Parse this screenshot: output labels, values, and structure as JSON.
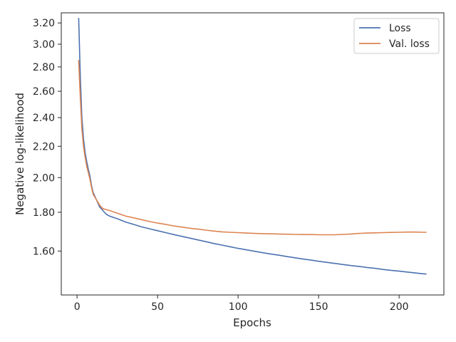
{
  "chart_data": {
    "type": "line",
    "title": "",
    "xlabel": "Epochs",
    "ylabel": "Negative log-likelihood",
    "yscale": "log",
    "xlim": [
      -9.8,
      227.8
    ],
    "ylim": [
      1.4,
      3.3
    ],
    "x_ticks": [
      0,
      50,
      100,
      150,
      200
    ],
    "x_tick_labels": [
      "0",
      "50",
      "100",
      "150",
      "200"
    ],
    "y_ticks": [
      1.6,
      1.8,
      2.0,
      2.2,
      2.4,
      2.6,
      2.8,
      3.0,
      3.2
    ],
    "y_tick_labels": [
      "1.60",
      "1.80",
      "2.00",
      "2.20",
      "2.40",
      "2.60",
      "2.80",
      "3.00",
      "3.20"
    ],
    "grid": false,
    "legend_position": "top-right",
    "series": [
      {
        "name": "Loss",
        "color": "#4c72b0",
        "points": [
          [
            1,
            3.25
          ],
          [
            2,
            2.72
          ],
          [
            3,
            2.4
          ],
          [
            4,
            2.25
          ],
          [
            5,
            2.16
          ],
          [
            6,
            2.1
          ],
          [
            7,
            2.05
          ],
          [
            8,
            2.01
          ],
          [
            9,
            1.95
          ],
          [
            10,
            1.91
          ],
          [
            12,
            1.87
          ],
          [
            14,
            1.83
          ],
          [
            16,
            1.81
          ],
          [
            18,
            1.79
          ],
          [
            20,
            1.78
          ],
          [
            25,
            1.765
          ],
          [
            30,
            1.748
          ],
          [
            35,
            1.735
          ],
          [
            40,
            1.722
          ],
          [
            45,
            1.712
          ],
          [
            50,
            1.702
          ],
          [
            55,
            1.692
          ],
          [
            60,
            1.682
          ],
          [
            65,
            1.673
          ],
          [
            70,
            1.664
          ],
          [
            75,
            1.655
          ],
          [
            80,
            1.646
          ],
          [
            85,
            1.637
          ],
          [
            90,
            1.629
          ],
          [
            95,
            1.621
          ],
          [
            100,
            1.613
          ],
          [
            105,
            1.606
          ],
          [
            110,
            1.599
          ],
          [
            115,
            1.592
          ],
          [
            120,
            1.586
          ],
          [
            125,
            1.58
          ],
          [
            130,
            1.574
          ],
          [
            135,
            1.568
          ],
          [
            140,
            1.562
          ],
          [
            145,
            1.557
          ],
          [
            150,
            1.551
          ],
          [
            155,
            1.546
          ],
          [
            160,
            1.541
          ],
          [
            165,
            1.536
          ],
          [
            170,
            1.531
          ],
          [
            175,
            1.527
          ],
          [
            180,
            1.522
          ],
          [
            185,
            1.518
          ],
          [
            190,
            1.513
          ],
          [
            195,
            1.509
          ],
          [
            200,
            1.505
          ],
          [
            205,
            1.501
          ],
          [
            210,
            1.497
          ],
          [
            215,
            1.493
          ],
          [
            217,
            1.492
          ]
        ]
      },
      {
        "name": "Val. loss",
        "color": "#dd8452",
        "points": [
          [
            1,
            2.86
          ],
          [
            2,
            2.55
          ],
          [
            3,
            2.32
          ],
          [
            4,
            2.2
          ],
          [
            5,
            2.13
          ],
          [
            6,
            2.07
          ],
          [
            7,
            2.03
          ],
          [
            8,
            1.99
          ],
          [
            9,
            1.94
          ],
          [
            10,
            1.9
          ],
          [
            12,
            1.87
          ],
          [
            14,
            1.84
          ],
          [
            16,
            1.82
          ],
          [
            18,
            1.815
          ],
          [
            20,
            1.81
          ],
          [
            25,
            1.795
          ],
          [
            30,
            1.78
          ],
          [
            35,
            1.77
          ],
          [
            40,
            1.76
          ],
          [
            45,
            1.75
          ],
          [
            50,
            1.742
          ],
          [
            55,
            1.735
          ],
          [
            60,
            1.727
          ],
          [
            65,
            1.721
          ],
          [
            70,
            1.715
          ],
          [
            75,
            1.71
          ],
          [
            80,
            1.705
          ],
          [
            85,
            1.7
          ],
          [
            90,
            1.696
          ],
          [
            95,
            1.694
          ],
          [
            100,
            1.692
          ],
          [
            105,
            1.69
          ],
          [
            110,
            1.688
          ],
          [
            115,
            1.687
          ],
          [
            120,
            1.686
          ],
          [
            125,
            1.685
          ],
          [
            130,
            1.684
          ],
          [
            135,
            1.683
          ],
          [
            140,
            1.682
          ],
          [
            145,
            1.682
          ],
          [
            150,
            1.681
          ],
          [
            155,
            1.681
          ],
          [
            160,
            1.681
          ],
          [
            165,
            1.683
          ],
          [
            170,
            1.685
          ],
          [
            175,
            1.688
          ],
          [
            180,
            1.69
          ],
          [
            185,
            1.691
          ],
          [
            190,
            1.692
          ],
          [
            195,
            1.693
          ],
          [
            200,
            1.694
          ],
          [
            205,
            1.695
          ],
          [
            210,
            1.695
          ],
          [
            215,
            1.694
          ],
          [
            217,
            1.694
          ]
        ]
      }
    ]
  }
}
